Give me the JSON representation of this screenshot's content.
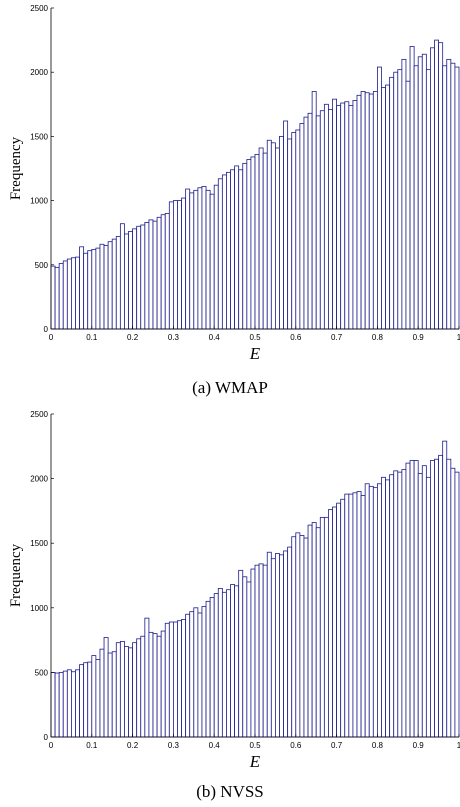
{
  "chart_data": [
    {
      "type": "bar",
      "caption": "(a) WMAP",
      "xlabel": "E",
      "ylabel": "Frequency",
      "xlim": [
        0,
        1
      ],
      "ylim": [
        0,
        2500
      ],
      "xticks": [
        0,
        0.1,
        0.2,
        0.3,
        0.4,
        0.5,
        0.6,
        0.7,
        0.8,
        0.9,
        1
      ],
      "xtick_labels": [
        "0",
        "0.1",
        "0.2",
        "0.3",
        "0.4",
        "0.5",
        "0.6",
        "0.7",
        "0.8",
        "0.9",
        "1"
      ],
      "yticks": [
        0,
        500,
        1000,
        1500,
        2000,
        2500
      ],
      "ytick_labels": [
        "0",
        "500",
        "1000",
        "1500",
        "2000",
        "2500"
      ],
      "bar_color": "#1c1c8c",
      "bin_width": 0.01,
      "values": [
        490,
        480,
        510,
        530,
        545,
        555,
        560,
        640,
        590,
        610,
        620,
        630,
        660,
        650,
        680,
        700,
        720,
        820,
        740,
        760,
        780,
        800,
        810,
        830,
        850,
        840,
        870,
        890,
        900,
        990,
        1000,
        1000,
        1020,
        1090,
        1060,
        1080,
        1100,
        1110,
        1080,
        1050,
        1120,
        1170,
        1200,
        1220,
        1240,
        1270,
        1240,
        1290,
        1320,
        1340,
        1360,
        1410,
        1370,
        1470,
        1450,
        1410,
        1500,
        1620,
        1480,
        1530,
        1550,
        1600,
        1650,
        1680,
        1850,
        1660,
        1700,
        1750,
        1710,
        1790,
        1740,
        1760,
        1770,
        1740,
        1780,
        1820,
        1850,
        1840,
        1830,
        1850,
        2040,
        1880,
        1900,
        1960,
        2000,
        2020,
        2100,
        1930,
        2200,
        2050,
        2120,
        2140,
        2020,
        2190,
        2250,
        2230,
        2050,
        2100,
        2070,
        2040
      ]
    },
    {
      "type": "bar",
      "caption": "(b) NVSS",
      "xlabel": "E",
      "ylabel": "Frequency",
      "xlim": [
        0,
        1
      ],
      "ylim": [
        0,
        2500
      ],
      "xticks": [
        0,
        0.1,
        0.2,
        0.3,
        0.4,
        0.5,
        0.6,
        0.7,
        0.8,
        0.9,
        1
      ],
      "xtick_labels": [
        "0",
        "0.1",
        "0.2",
        "0.3",
        "0.4",
        "0.5",
        "0.6",
        "0.7",
        "0.8",
        "0.9",
        "1"
      ],
      "yticks": [
        0,
        500,
        1000,
        1500,
        2000,
        2500
      ],
      "ytick_labels": [
        "0",
        "500",
        "1000",
        "1500",
        "2000",
        "2500"
      ],
      "bar_color": "#1c1c8c",
      "bin_width": 0.01,
      "values": [
        500,
        495,
        500,
        510,
        520,
        505,
        520,
        560,
        575,
        580,
        630,
        600,
        680,
        770,
        650,
        660,
        730,
        740,
        700,
        690,
        730,
        760,
        780,
        920,
        810,
        800,
        780,
        820,
        880,
        890,
        890,
        900,
        910,
        950,
        970,
        1000,
        960,
        1010,
        1050,
        1080,
        1110,
        1150,
        1120,
        1140,
        1180,
        1170,
        1290,
        1240,
        1200,
        1300,
        1330,
        1340,
        1330,
        1430,
        1380,
        1420,
        1410,
        1440,
        1470,
        1550,
        1580,
        1560,
        1540,
        1640,
        1660,
        1620,
        1700,
        1700,
        1760,
        1780,
        1810,
        1840,
        1880,
        1880,
        1890,
        1900,
        1870,
        1960,
        1940,
        1930,
        1960,
        2010,
        1990,
        2030,
        2060,
        2050,
        2070,
        2120,
        2140,
        2140,
        2040,
        2100,
        2010,
        2140,
        2150,
        2180,
        2290,
        2150,
        2080,
        2050
      ]
    }
  ]
}
